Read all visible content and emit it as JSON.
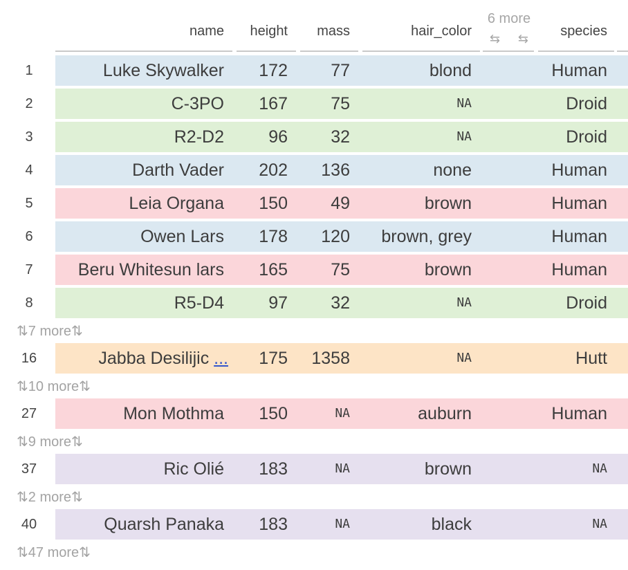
{
  "columns": {
    "name": "name",
    "height": "height",
    "mass": "mass",
    "hair_color": "hair_color",
    "more": "6 more",
    "more_arrows": "⇆",
    "species": "species"
  },
  "rows": [
    {
      "idx": "1",
      "name": "Luke Skywalker",
      "height": "172",
      "mass": "77",
      "hair_color": "blond",
      "species": "Human"
    },
    {
      "idx": "2",
      "name": "C-3PO",
      "height": "167",
      "mass": "75",
      "hair_color": "NA",
      "species": "Droid"
    },
    {
      "idx": "3",
      "name": "R2-D2",
      "height": "96",
      "mass": "32",
      "hair_color": "NA",
      "species": "Droid"
    },
    {
      "idx": "4",
      "name": "Darth Vader",
      "height": "202",
      "mass": "136",
      "hair_color": "none",
      "species": "Human"
    },
    {
      "idx": "5",
      "name": "Leia Organa",
      "height": "150",
      "mass": "49",
      "hair_color": "brown",
      "species": "Human"
    },
    {
      "idx": "6",
      "name": "Owen Lars",
      "height": "178",
      "mass": "120",
      "hair_color": "brown, grey",
      "species": "Human"
    },
    {
      "idx": "7",
      "name": "Beru Whitesun lars",
      "height": "165",
      "mass": "75",
      "hair_color": "brown",
      "species": "Human"
    },
    {
      "idx": "8",
      "name": "R5-D4",
      "height": "97",
      "mass": "32",
      "hair_color": "NA",
      "species": "Droid"
    },
    {
      "idx": "16",
      "name": "Jabba Desilijic ",
      "name_ellipsis": "...",
      "height": "175",
      "mass": "1358",
      "hair_color": "NA",
      "species": "Hutt"
    },
    {
      "idx": "27",
      "name": "Mon Mothma",
      "height": "150",
      "mass": "NA",
      "hair_color": "auburn",
      "species": "Human"
    },
    {
      "idx": "37",
      "name": "Ric Olié",
      "height": "183",
      "mass": "NA",
      "hair_color": "brown",
      "species": "NA"
    },
    {
      "idx": "40",
      "name": "Quarsh Panaka",
      "height": "183",
      "mass": "NA",
      "hair_color": "black",
      "species": "NA"
    }
  ],
  "gaps": [
    {
      "arrow": "⇅",
      "label": "7 more"
    },
    {
      "arrow": "⇅",
      "label": "10 more"
    },
    {
      "arrow": "⇅",
      "label": "9 more"
    },
    {
      "arrow": "⇅",
      "label": "2 more"
    },
    {
      "arrow": "⇅",
      "label": "47 more"
    }
  ],
  "colors": {
    "human": "#dbe8f1",
    "droid": "#dff0d6",
    "female": "#fbd6da",
    "hutt": "#fde4c6",
    "unknown_species": "#e6e0ef",
    "muted_text": "#a3a3a3",
    "link": "#3355cc"
  }
}
